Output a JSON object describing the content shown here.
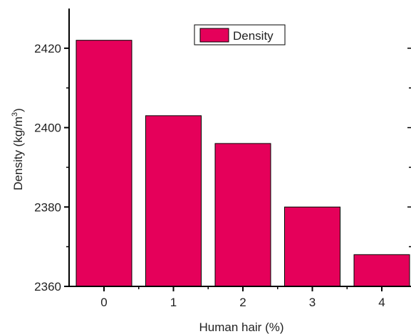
{
  "chart_data": {
    "type": "bar",
    "categories": [
      "0",
      "1",
      "2",
      "3",
      "4"
    ],
    "series": [
      {
        "name": "Density",
        "values": [
          2422,
          2403,
          2396,
          2380,
          2368
        ]
      }
    ],
    "xlabel": "Human hair (%)",
    "ylabel_main": "Density (kg/m",
    "ylabel_sup": "3",
    "ylabel_close": ")",
    "ylim": [
      2360,
      2430
    ],
    "yticks": [
      "2360",
      "2380",
      "2400",
      "2420"
    ],
    "grid": false,
    "legend": "top-center",
    "colors": {
      "bar": "#e5005a",
      "axis": "#000000"
    }
  }
}
